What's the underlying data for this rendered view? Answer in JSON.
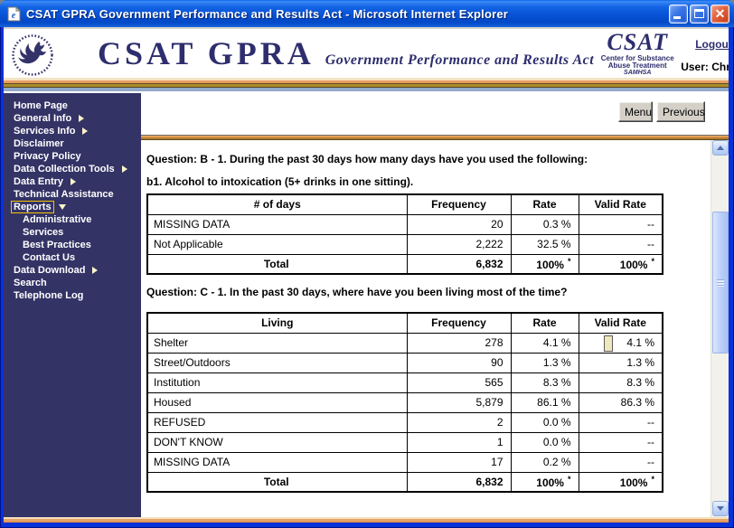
{
  "window": {
    "title": "CSAT GPRA Government Performance and Results Act - Microsoft Internet Explorer"
  },
  "header": {
    "brand_title": "CSAT GPRA",
    "brand_subtitle": "Government Performance and Results Act",
    "csat_logo": {
      "line1": "CSAT",
      "line2": "Center for Substance",
      "line3": "Abuse Treatment",
      "line4": "SAMHSA"
    },
    "logout_label": "Logout",
    "user_label": "User: Christopher Shumway"
  },
  "sidebar": {
    "items": [
      {
        "label": "Home Page"
      },
      {
        "label": "General Info",
        "arrow": "right"
      },
      {
        "label": "Services Info",
        "arrow": "right"
      },
      {
        "label": "Disclaimer"
      },
      {
        "label": "Privacy Policy"
      },
      {
        "label": "Data Collection Tools",
        "arrow": "right"
      },
      {
        "label": "Data Entry",
        "arrow": "right"
      },
      {
        "label": "Technical Assistance"
      },
      {
        "label": "Reports",
        "arrow": "down",
        "focused": true
      },
      {
        "label": "Administrative",
        "indent": true
      },
      {
        "label": "Services",
        "indent": true
      },
      {
        "label": "Best Practices",
        "indent": true
      },
      {
        "label": "Contact Us",
        "indent": true
      },
      {
        "label": "Data Download",
        "arrow": "right"
      },
      {
        "label": "Search"
      },
      {
        "label": "Telephone Log"
      }
    ]
  },
  "toolbar": {
    "menu_label": "Menu",
    "previous_label": "Previous"
  },
  "main": {
    "question_b_title": "Question: B - 1. During the past 30 days how many days have you used the following:",
    "question_b_sub": "b1. Alcohol to intoxication (5+ drinks in one sitting).",
    "question_c_title": "Question: C - 1. In the past 30 days, where have you been living most of the time?",
    "table_b": {
      "headers": [
        "# of days",
        "Frequency",
        "Rate",
        "Valid Rate"
      ],
      "rows": [
        [
          "MISSING DATA",
          "20",
          "0.3 %",
          "--"
        ],
        [
          "Not Applicable",
          "2,222",
          "32.5 %",
          "--"
        ]
      ],
      "total_row": [
        "Total",
        "6,832",
        "100%",
        "100%"
      ],
      "total_note": "*"
    },
    "table_c": {
      "headers": [
        "Living",
        "Frequency",
        "Rate",
        "Valid Rate"
      ],
      "rows": [
        [
          "Shelter",
          "278",
          "4.1 %",
          "4.1 %"
        ],
        [
          "Street/Outdoors",
          "90",
          "1.3 %",
          "1.3 %"
        ],
        [
          "Institution",
          "565",
          "8.3 %",
          "8.3 %"
        ],
        [
          "Housed",
          "5,879",
          "86.1 %",
          "86.3 %"
        ],
        [
          "REFUSED",
          "2",
          "0.0 %",
          "--"
        ],
        [
          "DON'T KNOW",
          "1",
          "0.0 %",
          "--"
        ],
        [
          "MISSING DATA",
          "17",
          "0.2 %",
          "--"
        ]
      ],
      "total_row": [
        "Total",
        "6,832",
        "100%",
        "100%"
      ],
      "total_note": "*"
    }
  },
  "colors": {
    "brand_navy": "#333366",
    "titlebar_blue": "#0852D6",
    "window_border_blue": "#0831D9",
    "gold": "#A98C2C",
    "orange": "#E99E63",
    "focus_yellow": "#F5C400",
    "button_gray": "#D4D0C8"
  }
}
